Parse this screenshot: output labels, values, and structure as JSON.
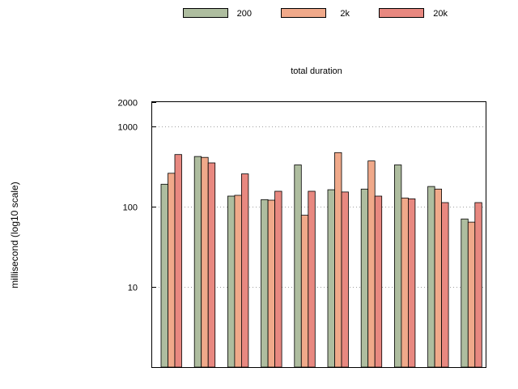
{
  "chart_data": {
    "type": "bar",
    "title": "total duration",
    "ylabel": "millisecond (log10 scale)",
    "xlabel": "",
    "yscale": "log10",
    "ylim": [
      1,
      2000
    ],
    "yticks": [
      {
        "value": 10,
        "label": "10"
      },
      {
        "value": 100,
        "label": "100"
      },
      {
        "value": 1000,
        "label": "1000"
      },
      {
        "value": 2000,
        "label": "2000"
      }
    ],
    "grid": true,
    "legend_position": "top",
    "group_count": 10,
    "series": [
      {
        "name": "200",
        "color": "#aebd9f",
        "values": [
          190,
          420,
          135,
          122,
          330,
          162,
          165,
          330,
          178,
          70
        ]
      },
      {
        "name": "2k",
        "color": "#f0a98a",
        "values": [
          260,
          410,
          138,
          120,
          78,
          470,
          370,
          128,
          165,
          64
        ]
      },
      {
        "name": "20k",
        "color": "#e88880",
        "values": [
          445,
          350,
          255,
          155,
          155,
          152,
          135,
          125,
          112,
          112
        ]
      }
    ]
  }
}
